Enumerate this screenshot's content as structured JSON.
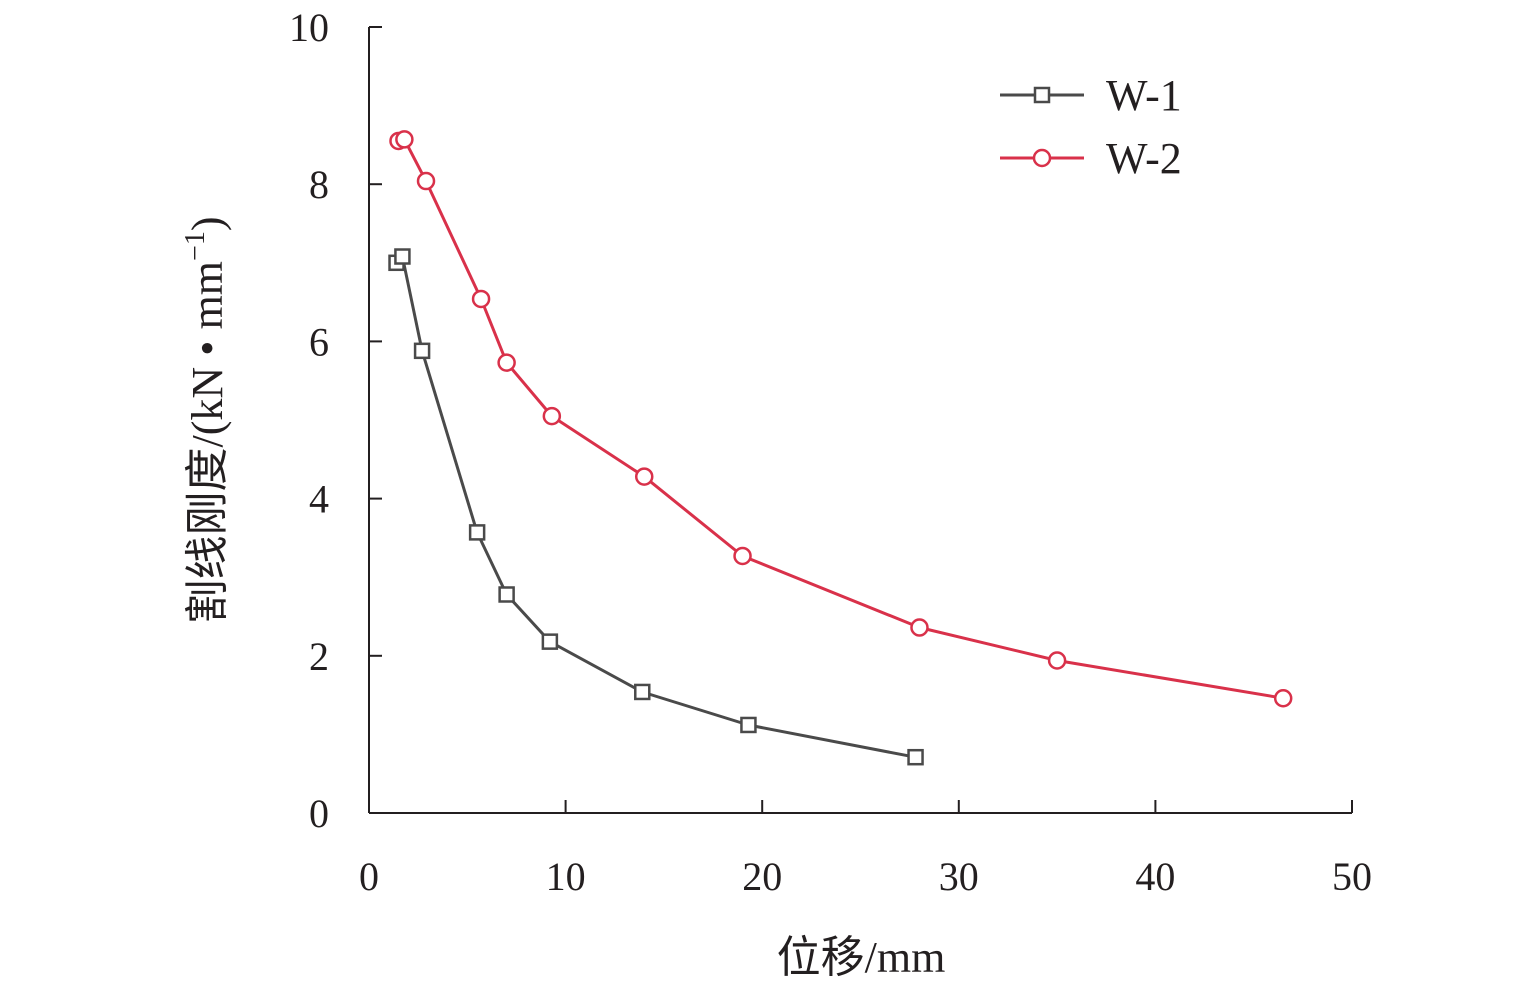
{
  "chart_data": {
    "type": "line",
    "xlabel": "位移/mm",
    "ylabel": "割线刚度/(kN • mm",
    "ylabel_sup": "−1",
    "ylabel_close": ")",
    "xlim": [
      0,
      50
    ],
    "ylim": [
      0,
      10
    ],
    "xticks": [
      0,
      10,
      20,
      30,
      40,
      50
    ],
    "yticks": [
      0,
      2,
      4,
      6,
      8,
      10
    ],
    "grid": false,
    "legend_position": "top-right",
    "series": [
      {
        "name": "W-1",
        "color": "#4a4a4a",
        "marker": "square",
        "x": [
          1.4,
          1.7,
          2.7,
          5.5,
          7.0,
          9.2,
          13.9,
          19.3,
          27.8
        ],
        "y": [
          7.0,
          7.08,
          5.88,
          3.57,
          2.78,
          2.18,
          1.54,
          1.12,
          0.71
        ]
      },
      {
        "name": "W-2",
        "color": "#d9314a",
        "marker": "circle",
        "x": [
          1.5,
          1.8,
          2.9,
          5.7,
          7.0,
          9.3,
          14.0,
          19.0,
          28.0,
          35.0,
          46.5
        ],
        "y": [
          8.55,
          8.57,
          8.04,
          6.54,
          5.73,
          5.05,
          4.28,
          3.27,
          2.36,
          1.94,
          1.46
        ]
      }
    ]
  }
}
